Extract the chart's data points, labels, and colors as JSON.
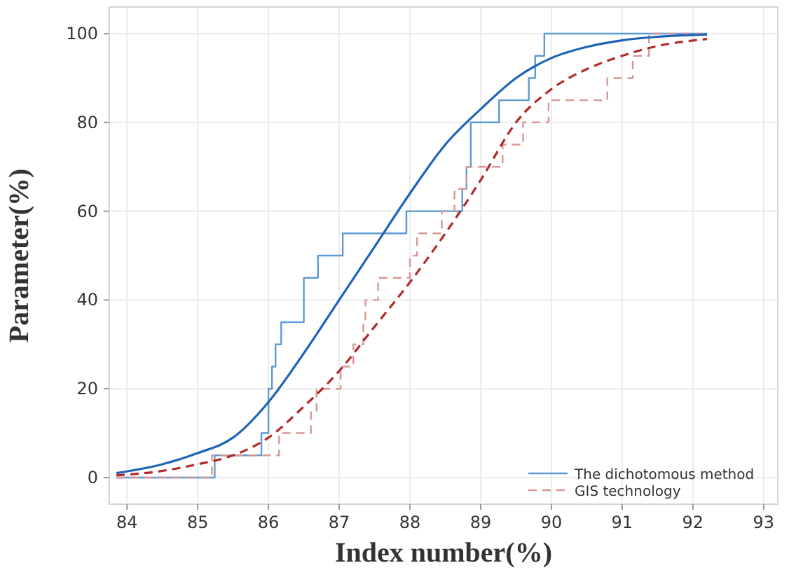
{
  "chart_data": {
    "type": "line",
    "xlabel": "Index number(%)",
    "ylabel": "Parameter(%)",
    "xlim": [
      83.75,
      93.2
    ],
    "ylim": [
      -6,
      106
    ],
    "xticks": [
      84,
      85,
      86,
      87,
      88,
      89,
      90,
      91,
      92,
      93
    ],
    "yticks": [
      0,
      20,
      40,
      60,
      80,
      100
    ],
    "grid": true,
    "legend": "bottom right",
    "series": [
      {
        "name": "The dichotomous method",
        "type": "step",
        "color": "#5b9bd5",
        "line_style": "solid",
        "x": [
          83.85,
          85.24,
          85.9,
          86.0,
          86.05,
          86.1,
          86.18,
          86.5,
          86.7,
          87.05,
          87.95,
          88.74,
          88.8,
          88.86,
          89.26,
          89.68,
          89.77,
          89.9,
          92.2
        ],
        "values": [
          0,
          5,
          10,
          20,
          25,
          30,
          35,
          45,
          50,
          55,
          60,
          65,
          70,
          80,
          85,
          90,
          95,
          100,
          100
        ]
      },
      {
        "name": "GIS technology",
        "type": "step",
        "color": "#d99694",
        "line_style": "dashed",
        "x": [
          83.85,
          85.2,
          86.15,
          86.6,
          86.68,
          87.02,
          87.2,
          87.34,
          87.37,
          87.55,
          88.0,
          88.1,
          88.45,
          88.63,
          88.8,
          89.31,
          89.6,
          89.96,
          90.79,
          91.15,
          91.38,
          92.2
        ],
        "values": [
          0,
          5,
          10,
          15,
          20,
          25,
          30,
          35,
          40,
          45,
          50,
          55,
          60,
          65,
          70,
          75,
          80,
          85,
          90,
          95,
          100,
          100
        ]
      },
      {
        "type": "line",
        "color": "#1f63b8",
        "line_style": "solid",
        "x": [
          83.85,
          84.5,
          85,
          85.5,
          86,
          86.5,
          87,
          87.5,
          88,
          88.5,
          89,
          89.5,
          90,
          90.5,
          91,
          91.5,
          92.2
        ],
        "values": [
          1,
          3,
          5.5,
          9,
          17,
          28,
          40,
          52,
          64,
          75,
          83,
          90,
          94.5,
          97,
          98.5,
          99.3,
          99.8
        ]
      },
      {
        "type": "line",
        "color": "#b02a2a",
        "line_style": "dashed",
        "x": [
          83.85,
          84.5,
          85,
          85.5,
          86,
          86.5,
          87,
          87.5,
          88,
          88.5,
          89,
          89.5,
          90,
          90.5,
          91,
          91.5,
          92.2
        ],
        "values": [
          0.5,
          1.5,
          3,
          5,
          9,
          16,
          24,
          34,
          44,
          55,
          67,
          80,
          87.5,
          92,
          95,
          97.2,
          98.8
        ]
      }
    ]
  }
}
